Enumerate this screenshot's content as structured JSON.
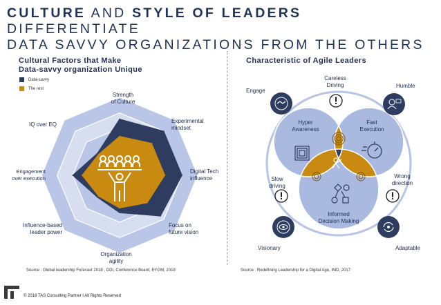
{
  "title": {
    "parts": [
      {
        "text": "CULTURE",
        "bold": true
      },
      {
        "text": " AND ",
        "bold": false
      },
      {
        "text": "STYLE OF LEADERS",
        "bold": true
      },
      {
        "text": " DIFFERENTIATE",
        "bold": false
      }
    ],
    "line2": "DATA SAVVY ORGANIZATIONS FROM THE OTHERS"
  },
  "left": {
    "title_line1": "Cultural Factors that Make",
    "title_line2": "Data-savvy organization Unique",
    "source": "Source : Global leadership Forecast 2018 ,  DDI, Conference Board, EYGM, 2018"
  },
  "right": {
    "title": "Characteristic of Agile Leaders",
    "source": "Source : Redefining Leadership for a Digital Age, IMD, 2017",
    "outer": {
      "engage": "Engage",
      "careless_1": "Careless",
      "careless_2": "Driving",
      "humble": "Humble",
      "slow_1": "Slow",
      "slow_2": "driving",
      "wrong_1": "Wrong",
      "wrong_2": "direction",
      "visionary": "Visionary",
      "adaptable": "Adaptable"
    },
    "venn": {
      "hyper_1": "Hyper",
      "hyper_2": "Awareness",
      "fast_1": "Fast",
      "fast_2": "Execution",
      "informed_1": "Informed",
      "informed_2": "Decision Making"
    },
    "colors": {
      "navy": "#2e3d5f",
      "gold": "#c88a10",
      "light": "#a9b9df",
      "ring": "#b8c4e6"
    }
  },
  "footer": "© 2018 TAS Consulting Partner  I  All Rights Reserved",
  "chart_data": {
    "type": "radar",
    "title": "Cultural Factors that Make Data-savvy organization Unique",
    "axes": [
      [
        "Strength",
        "of Culture"
      ],
      [
        "Experimental",
        "mindset"
      ],
      [
        "Digital Tech",
        "influence"
      ],
      [
        "Focus on",
        "future vision"
      ],
      [
        "Organization",
        "agility"
      ],
      [
        "Influence-based",
        "leader power"
      ],
      [
        "Engagement",
        "over execution"
      ],
      [
        "IQ over EQ"
      ]
    ],
    "scale_max": 5,
    "series": [
      {
        "name": "Data-savvy",
        "color": "#2e3d5f",
        "values": [
          3.6,
          4.0,
          4.0,
          3.7,
          2.4,
          2.0,
          3.0,
          2.0
        ]
      },
      {
        "name": "The rest",
        "color": "#c88a10",
        "values": [
          2.5,
          2.9,
          2.9,
          2.5,
          2.1,
          1.9,
          2.4,
          1.9
        ]
      }
    ],
    "ring_colors": [
      "#b9c6e8",
      "#d6deef"
    ]
  }
}
